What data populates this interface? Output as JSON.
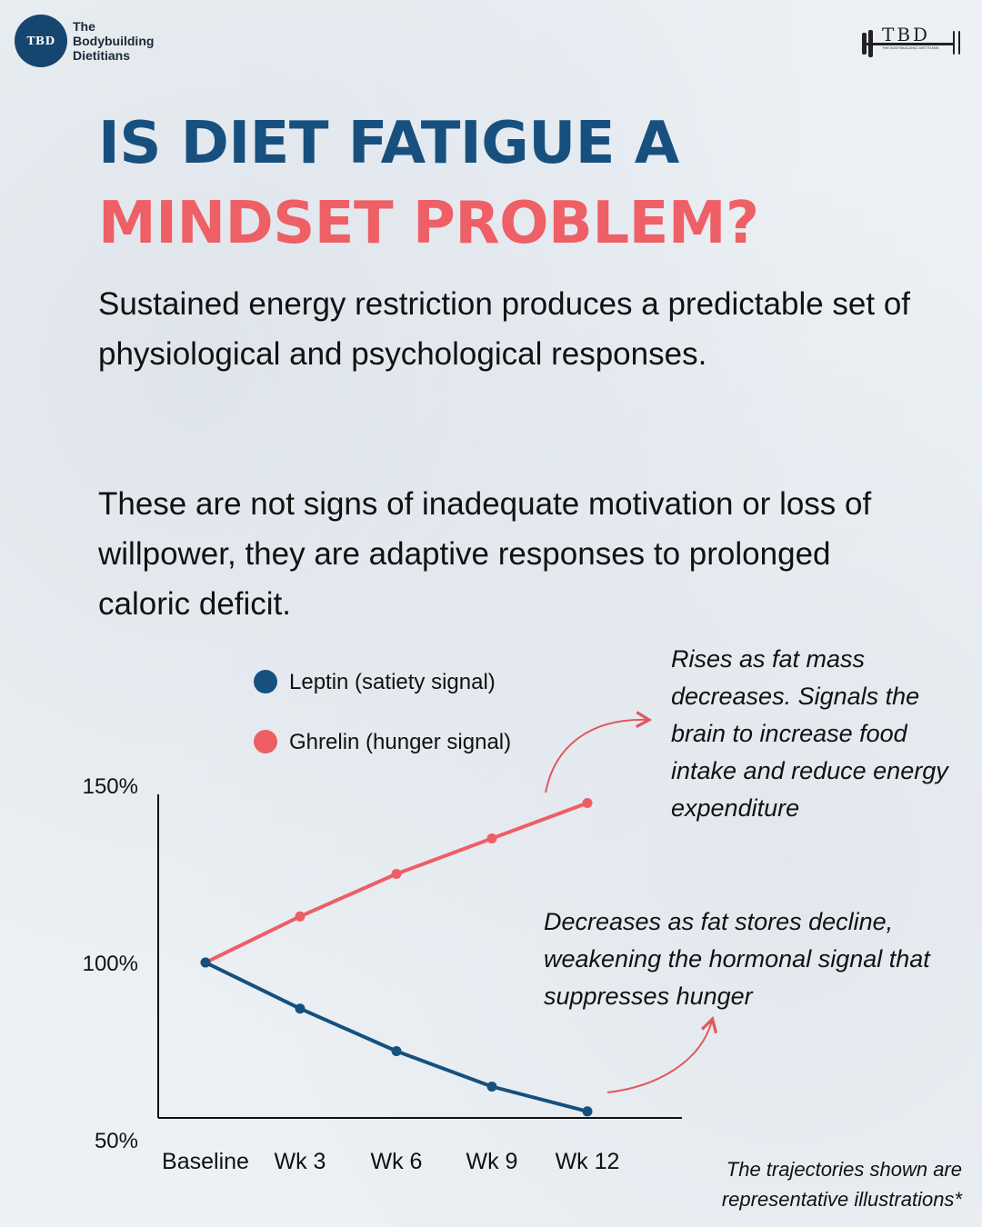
{
  "brand": {
    "badge_text": "TBD",
    "name": "The Bodybuilding Dietitians",
    "logo_right_text": "TBD",
    "logo_right_sub": "THE BODYBUILDING DIETITIANS"
  },
  "title": {
    "line1": "IS DIET FATIGUE A",
    "line2": "MINDSET PROBLEM?"
  },
  "paragraphs": {
    "p1": "Sustained energy restriction produces a predictable set of physiological and psychological responses.",
    "p2": "These are not signs of inadequate motivation or loss of willpower, they are adaptive responses to prolonged caloric deficit."
  },
  "annotations": {
    "ghrelin": "Rises as fat mass decreases. Signals the brain to increase food intake and reduce energy expenditure",
    "leptin": "Decreases as fat stores decline, weakening the hormonal signal that suppresses hunger"
  },
  "footnote": "The trajectories shown are representative illustrations*",
  "chart_data": {
    "type": "line",
    "title": "",
    "xlabel": "",
    "ylabel": "",
    "categories": [
      "Baseline",
      "Wk 3",
      "Wk 6",
      "Wk 9",
      "Wk 12"
    ],
    "ylim": [
      50,
      150
    ],
    "yticks": [
      "150%",
      "100%",
      "50%"
    ],
    "ytick_values": [
      150,
      100,
      50
    ],
    "grid": false,
    "legend_position": "top",
    "series": [
      {
        "name": "Leptin (satiety signal)",
        "color": "#16507d",
        "values": [
          100,
          87,
          75,
          65,
          58
        ]
      },
      {
        "name": "Ghrelin (hunger signal)",
        "color": "#ee5e65",
        "values": [
          100,
          113,
          125,
          135,
          145
        ]
      }
    ]
  },
  "colors": {
    "title_blue": "#17507e",
    "title_red": "#ee5f66",
    "badge": "#16456f",
    "arrow": "#e0575f"
  }
}
